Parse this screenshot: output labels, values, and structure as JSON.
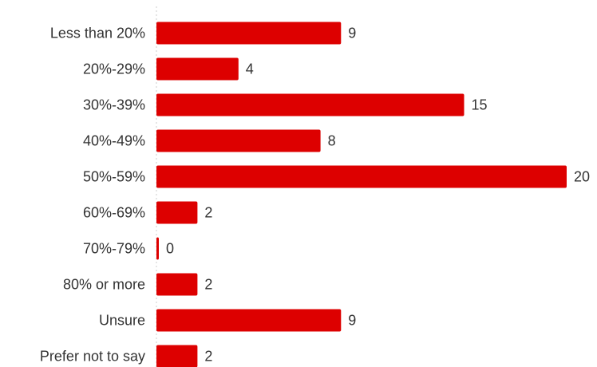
{
  "chart_data": {
    "type": "bar",
    "orientation": "horizontal",
    "categories": [
      "Less than 20%",
      "20%-29%",
      "30%-39%",
      "40%-49%",
      "50%-59%",
      "60%-69%",
      "70%-79%",
      "80% or more",
      "Unsure",
      "Prefer not to say"
    ],
    "values": [
      9,
      4,
      15,
      8,
      20,
      2,
      0,
      2,
      9,
      2
    ],
    "xlim": [
      0,
      20
    ],
    "bar_color": "#dd0000",
    "show_data_labels": true,
    "grid": false,
    "baseline": "dotted"
  }
}
